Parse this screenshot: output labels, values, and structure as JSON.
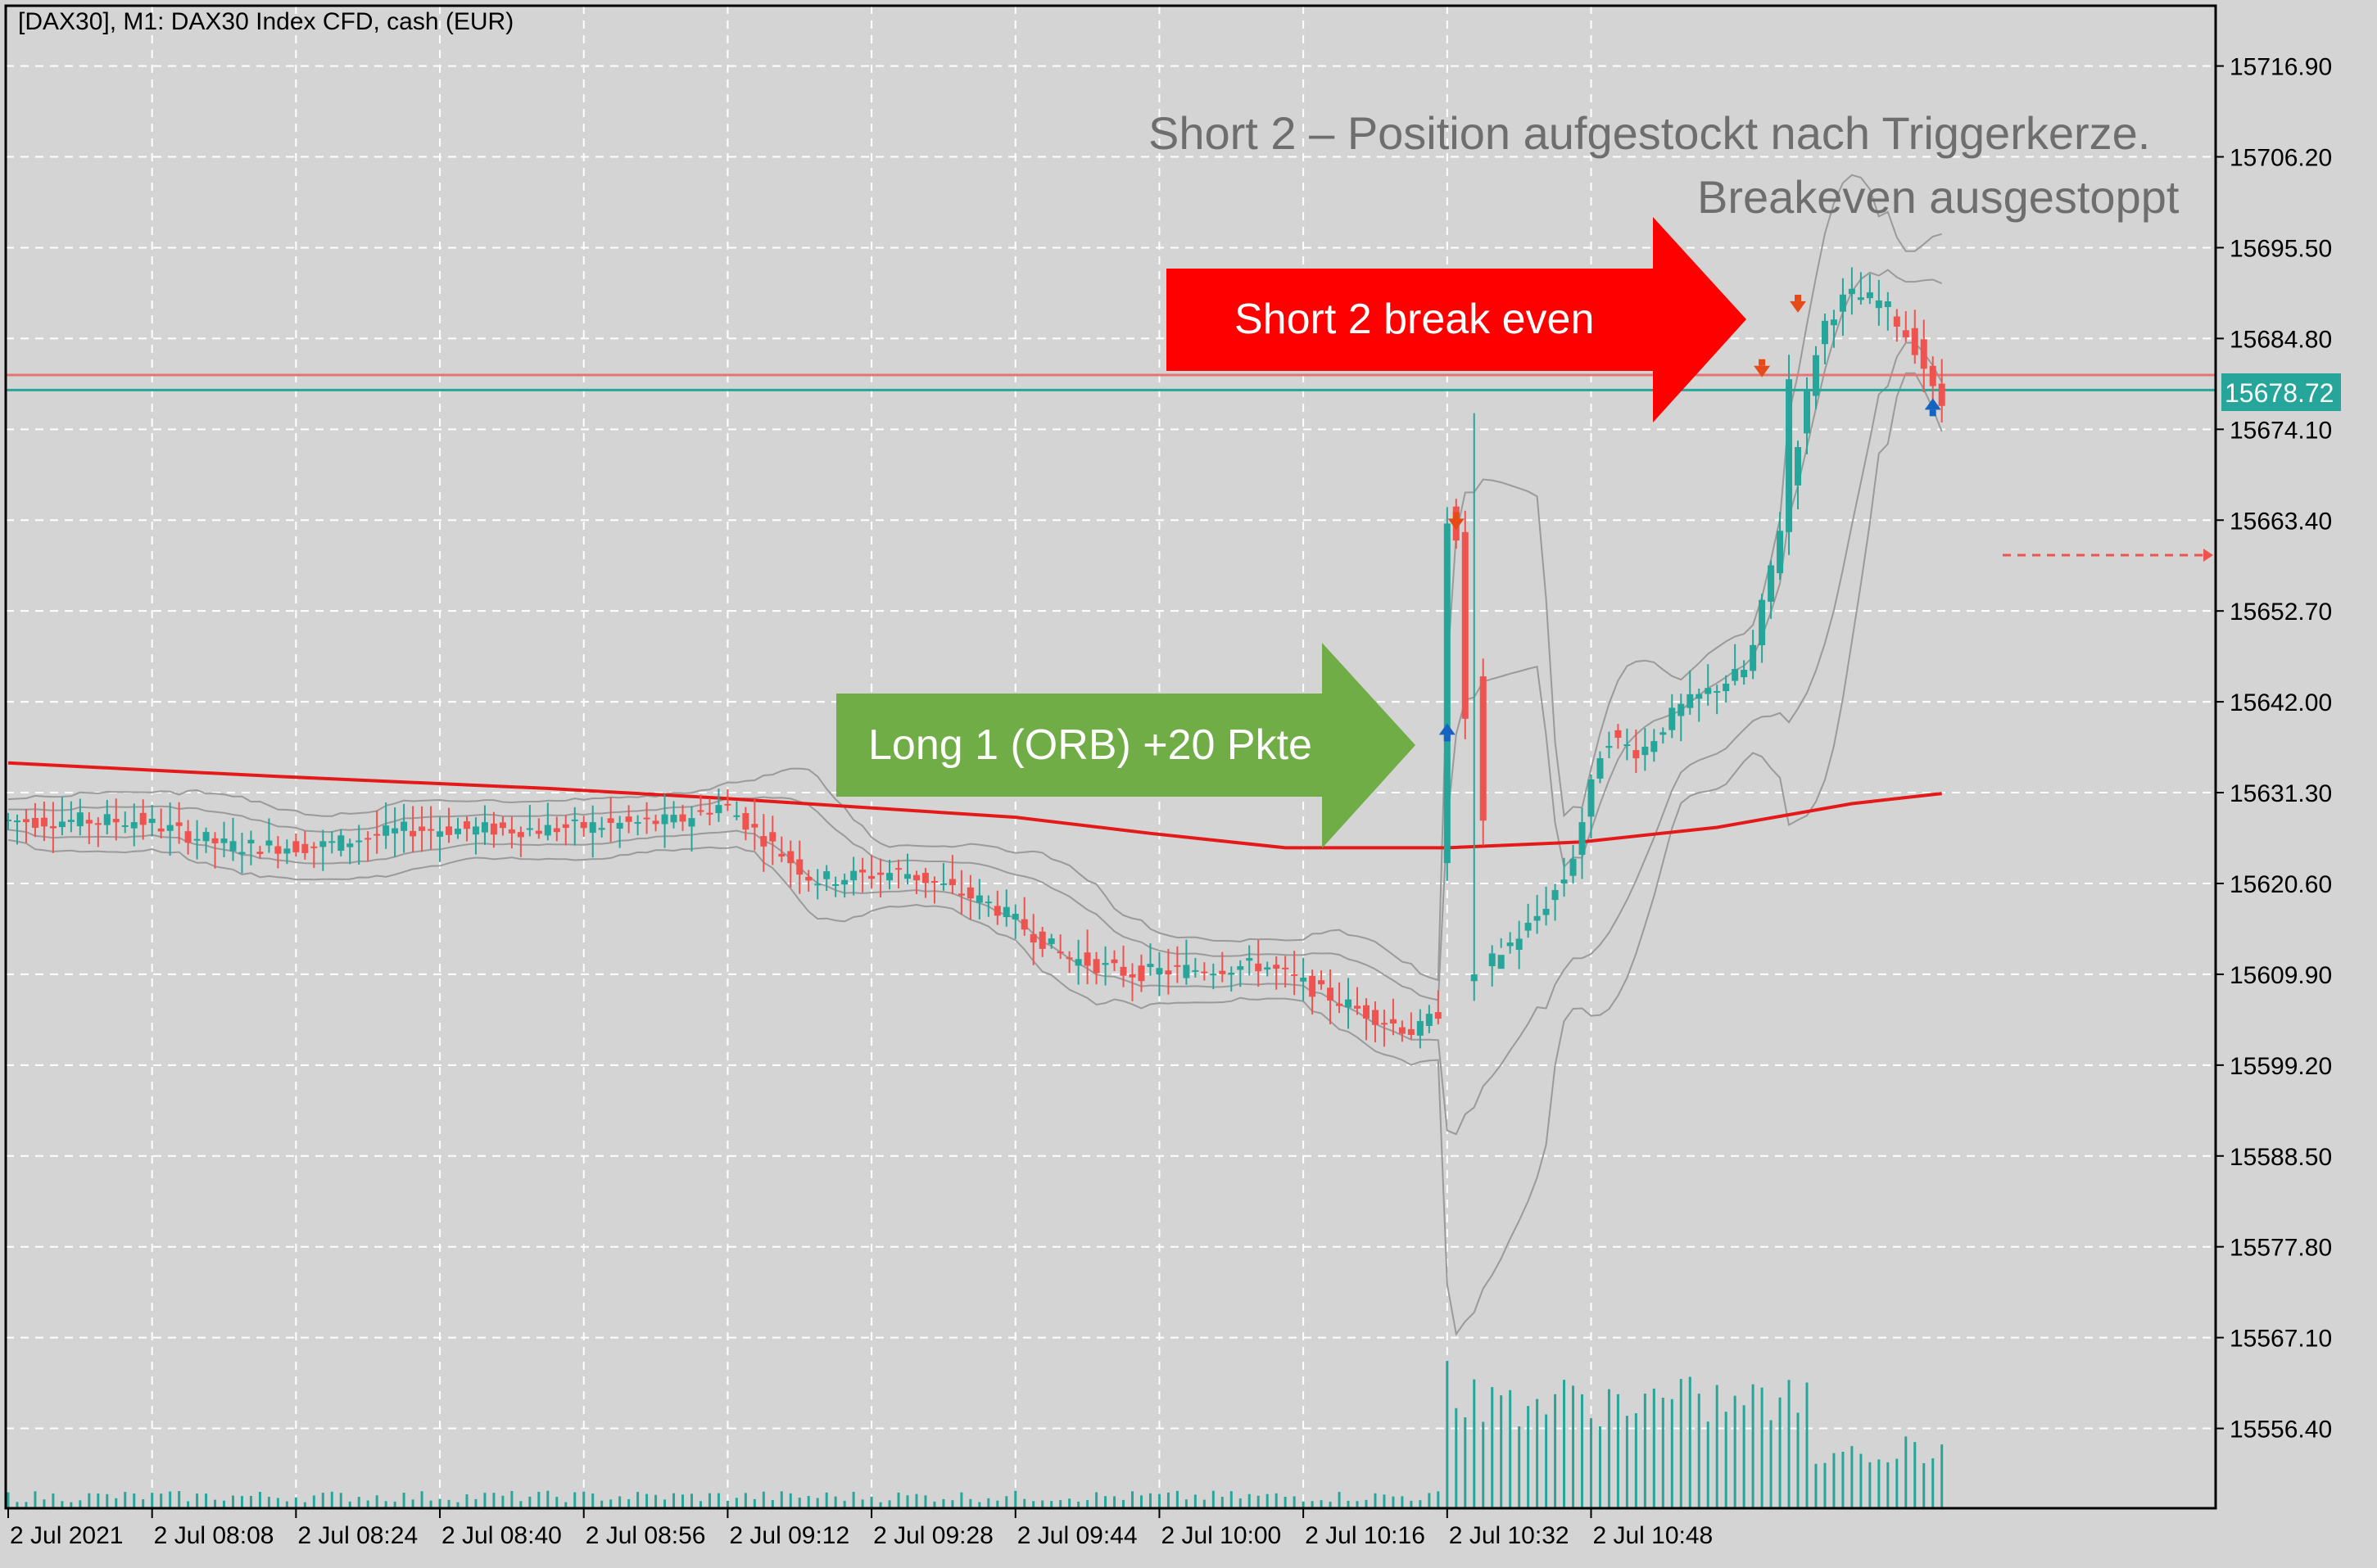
{
  "header": {
    "title": "[DAX30], M1:  DAX30 Index CFD, cash (EUR)"
  },
  "annotations": {
    "short_text_line1": "Short 2 – Position aufgestockt nach Triggerkerze.",
    "short_text_line2": "Breakeven ausgestoppt",
    "red_arrow_label": "Short 2 break even",
    "green_arrow_label": "Long 1 (ORB) +20 Pkte"
  },
  "price_axis": {
    "labels": [
      "15716.90",
      "15706.20",
      "15695.50",
      "15684.80",
      "15674.10",
      "15663.40",
      "15652.70",
      "15642.00",
      "15631.30",
      "15620.60",
      "15609.90",
      "15599.20",
      "15588.50",
      "15577.80",
      "15567.10",
      "15556.40"
    ],
    "current_price": "15678.72"
  },
  "time_axis": {
    "labels": [
      "2 Jul 2021",
      "2 Jul 08:08",
      "2 Jul 08:24",
      "2 Jul 08:40",
      "2 Jul 08:56",
      "2 Jul 09:12",
      "2 Jul 09:28",
      "2 Jul 09:44",
      "2 Jul 10:00",
      "2 Jul 10:16",
      "2 Jul 10:32",
      "2 Jul 10:48"
    ]
  },
  "colors": {
    "background": "#d4d4d4",
    "bull_candle": "#26a69a",
    "bear_candle": "#ef5350",
    "moving_average": "#e41a1a",
    "bands": "#9a9a9a",
    "current_price_line": "#26a69a",
    "red_arrow": "#ff0000",
    "green_arrow": "#70ad47"
  },
  "chart_data": {
    "type": "candlestick",
    "symbol": "DAX30",
    "timeframe": "M1",
    "ylim": [
      15547,
      15724
    ],
    "horizontal_lines": [
      {
        "price": 15680.5,
        "color": "#e57373"
      },
      {
        "price": 15678.72,
        "color": "#26a69a"
      }
    ],
    "moving_average": [
      [
        0,
        15634.8
      ],
      [
        30,
        15633.2
      ],
      [
        60,
        15631.8
      ],
      [
        80,
        15630.6
      ],
      [
        112,
        15628.4
      ],
      [
        127,
        15626.5
      ],
      [
        142,
        15624.8
      ],
      [
        160,
        15624.8
      ],
      [
        175,
        15625.5
      ],
      [
        190,
        15627.2
      ],
      [
        205,
        15630
      ],
      [
        215,
        15631.2
      ]
    ],
    "entries": [
      {
        "type": "buy",
        "bar": 160,
        "price": 15638.5
      },
      {
        "type": "sell",
        "bar": 161,
        "price": 15663.2
      },
      {
        "type": "sell",
        "bar": 195,
        "price": 15681.2
      },
      {
        "type": "sell",
        "bar": 199,
        "price": 15688.8
      },
      {
        "type": "buy",
        "bar": 214,
        "price": 15676.8
      }
    ],
    "volume_scale_max": 100
  }
}
